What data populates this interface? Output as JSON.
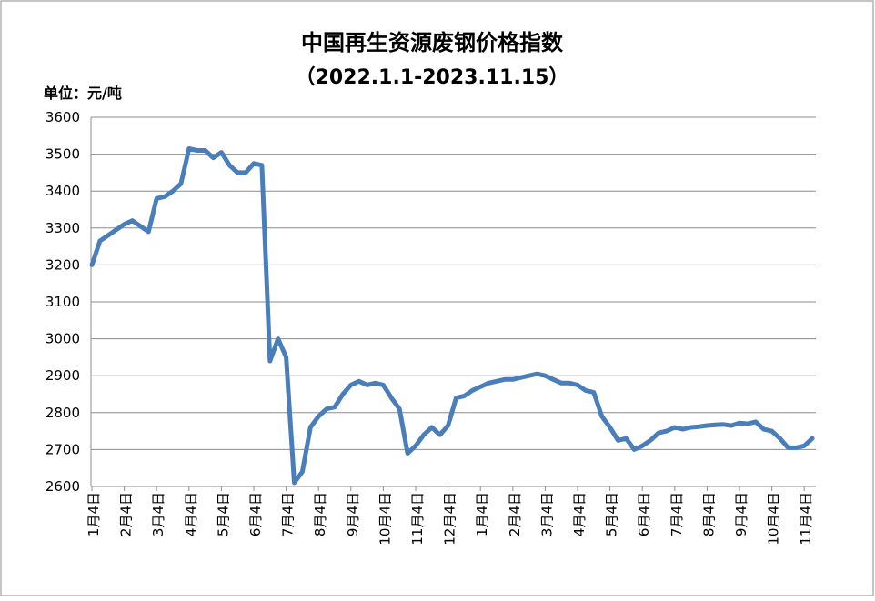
{
  "chart_data": {
    "type": "line",
    "title": "中国再生资源废钢价格指数",
    "subtitle": "（2022.1.1-2023.11.15）",
    "unit_label": "单位：元/吨",
    "categories": [
      "1月4日",
      null,
      null,
      null,
      "2月4日",
      null,
      null,
      null,
      "3月4日",
      null,
      null,
      null,
      "4月4日",
      null,
      null,
      null,
      "5月4日",
      null,
      null,
      null,
      "6月4日",
      null,
      null,
      null,
      "7月4日",
      null,
      null,
      null,
      "8月4日",
      null,
      null,
      null,
      "9月4日",
      null,
      null,
      null,
      "10月4日",
      null,
      null,
      null,
      "11月4日",
      null,
      null,
      null,
      "12月4日",
      null,
      null,
      null,
      "1月4日",
      null,
      null,
      null,
      "2月4日",
      null,
      null,
      null,
      "3月4日",
      null,
      null,
      null,
      "4月4日",
      null,
      null,
      null,
      "5月4日",
      null,
      null,
      null,
      "6月4日",
      null,
      null,
      null,
      "7月4日",
      null,
      null,
      null,
      "8月4日",
      null,
      null,
      null,
      "9月4日",
      null,
      null,
      null,
      "10月4日",
      null,
      null,
      null,
      "11月4日",
      null
    ],
    "values": [
      3200,
      3265,
      3280,
      3295,
      3310,
      3320,
      3305,
      3290,
      3380,
      3385,
      3400,
      3420,
      3515,
      3510,
      3510,
      3490,
      3505,
      3470,
      3450,
      3450,
      3475,
      3470,
      2940,
      3000,
      2950,
      2610,
      2640,
      2760,
      2790,
      2810,
      2815,
      2850,
      2875,
      2885,
      2875,
      2880,
      2875,
      2840,
      2810,
      2690,
      2710,
      2740,
      2760,
      2740,
      2765,
      2840,
      2845,
      2860,
      2870,
      2880,
      2885,
      2890,
      2890,
      2895,
      2900,
      2905,
      2900,
      2890,
      2880,
      2880,
      2875,
      2860,
      2855,
      2790,
      2760,
      2725,
      2730,
      2700,
      2710,
      2725,
      2745,
      2750,
      2760,
      2755,
      2760,
      2762,
      2765,
      2767,
      2768,
      2765,
      2772,
      2770,
      2775,
      2755,
      2750,
      2730,
      2705,
      2705,
      2710,
      2730
    ],
    "color": "#4a7ebb",
    "ylim": [
      2600,
      3600
    ],
    "yticks": [
      2600,
      2700,
      2800,
      2900,
      3000,
      3100,
      3200,
      3300,
      3400,
      3500,
      3600
    ],
    "grid": true
  }
}
